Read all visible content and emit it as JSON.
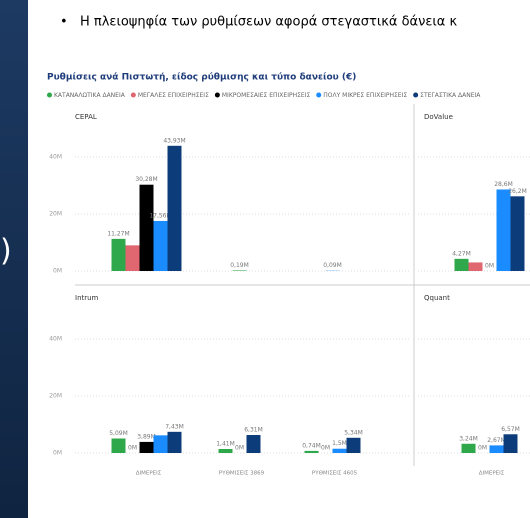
{
  "header": {
    "bullet": "•",
    "text": "Η πλειοψηφία των ρυθμίσεων αφορά στεγαστικά δάνεια κ",
    "side_fragment": ")"
  },
  "chart_data": {
    "type": "bar",
    "title": "Ρυθμίσεις ανά Πιστωτή, είδος ρύθμισης και τύπο δανείου (€)",
    "categories": [
      "ΔΙΜΕΡΕΙΣ",
      "ΡΥΘΜΙΣΕΙΣ 3869",
      "ΡΥΘΜΙΣΕΙΣ 4605"
    ],
    "series": [
      {
        "name": "ΚΑΤΑΝΑΛΩΤΙΚΑ ΔΑΝΕΙΑ",
        "color": "#2ea84a"
      },
      {
        "name": "ΜΕΓΑΛΕΣ ΕΠΙΧΕΙΡΗΣΕΙΣ",
        "color": "#e06670"
      },
      {
        "name": "ΜΙΚΡΟΜΕΣΑΙΕΣ ΕΠΙΧΕΙΡΗΣΕΙΣ",
        "color": "#000000"
      },
      {
        "name": "ΠΟΛΥ ΜΙΚΡΕΣ ΕΠΙΧΕΙΡΗΣΕΙΣ",
        "color": "#1a8cff"
      },
      {
        "name": "ΣΤΕΓΑΣΤΙΚΑ ΔΑΝΕΙΑ",
        "color": "#0d3c7a"
      }
    ],
    "ylim": [
      0,
      50
    ],
    "yticks": [
      {
        "value": 0,
        "label": "0M"
      },
      {
        "value": 20,
        "label": "20M"
      },
      {
        "value": 40,
        "label": "40M"
      }
    ],
    "grid": true,
    "panels": [
      {
        "title": "CEPAL",
        "values": [
          [
            11.27,
            0.19,
            null
          ],
          [
            9,
            null,
            null
          ],
          [
            30.28,
            null,
            null
          ],
          [
            17.56,
            null,
            0.09
          ],
          [
            43.93,
            null,
            null
          ]
        ],
        "value_labels": [
          [
            "11,27M",
            "0,19M",
            null
          ],
          [
            null,
            null,
            null
          ],
          [
            "30,28M",
            null,
            null
          ],
          [
            "17,56M",
            null,
            "0,09M"
          ],
          [
            "43,93M",
            null,
            null
          ]
        ]
      },
      {
        "title": "DoValue",
        "values": [
          [
            4.27,
            null,
            null
          ],
          [
            3,
            null,
            null
          ],
          [
            0,
            null,
            null
          ],
          [
            28.6,
            null,
            null
          ],
          [
            26.2,
            null,
            null
          ]
        ],
        "value_labels": [
          [
            "4,27M",
            null,
            null
          ],
          [
            null,
            null,
            null
          ],
          [
            "0M",
            null,
            null
          ],
          [
            "28,6M",
            null,
            null
          ],
          [
            "26,2M",
            null,
            null
          ]
        ]
      },
      {
        "title": "Intrum",
        "values": [
          [
            5.09,
            1.41,
            0.74
          ],
          [
            0,
            null,
            null
          ],
          [
            3.89,
            0,
            0
          ],
          [
            6.2,
            null,
            1.5
          ],
          [
            7.43,
            6.31,
            5.34
          ]
        ],
        "value_labels": [
          [
            "5,09M",
            "1,41M",
            "0,74M"
          ],
          [
            "0M",
            null,
            null
          ],
          [
            "3,89M",
            "0M",
            "0M"
          ],
          [
            null,
            null,
            "1,5M"
          ],
          [
            "7,43M",
            "6,31M",
            "5,34M"
          ]
        ]
      },
      {
        "title": "Qquant",
        "values": [
          [
            3.24,
            null,
            null
          ],
          [
            null,
            null,
            null
          ],
          [
            0,
            null,
            null
          ],
          [
            2.67,
            null,
            null
          ],
          [
            6.57,
            null,
            null
          ]
        ],
        "value_labels": [
          [
            "3,24M",
            null,
            null
          ],
          [
            null,
            null,
            null
          ],
          [
            "0M",
            null,
            null
          ],
          [
            "2,67M",
            null,
            null
          ],
          [
            "6,57M",
            null,
            null
          ]
        ]
      }
    ]
  }
}
